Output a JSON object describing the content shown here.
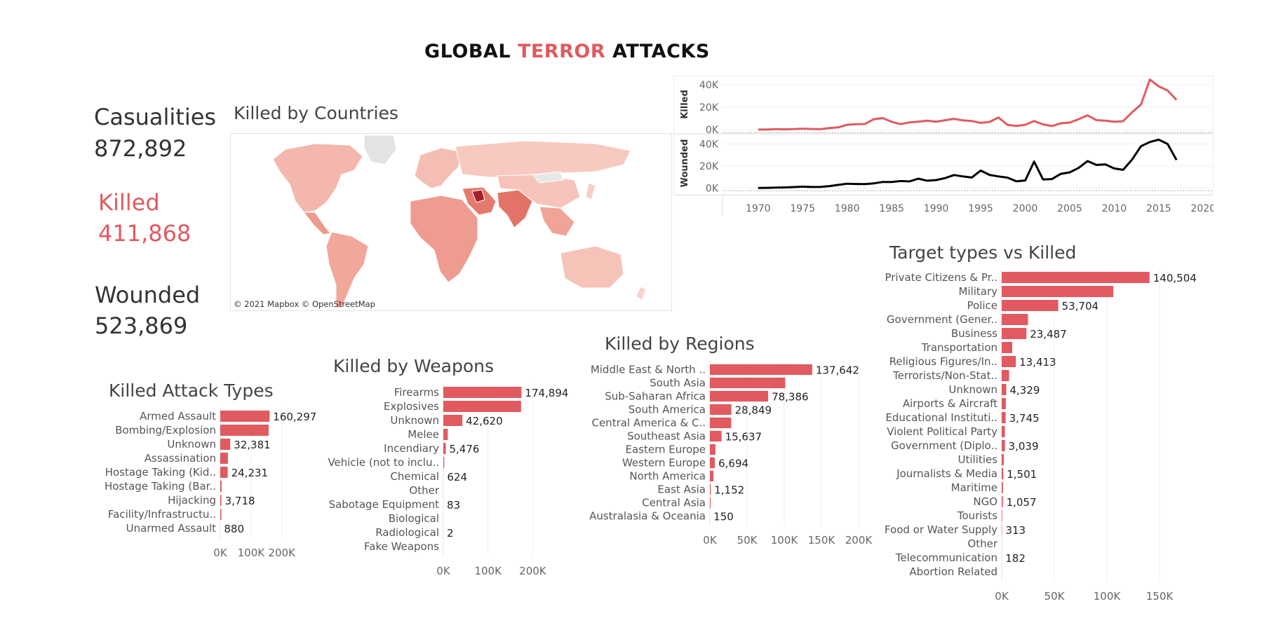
{
  "title": {
    "part1": "GLOBAL ",
    "part2": "TERROR",
    "part3": " ATTACKS"
  },
  "kpis": {
    "casualties": {
      "label": "Casualities",
      "value": "872,892"
    },
    "killed": {
      "label": "Killed",
      "value": "411,868"
    },
    "wounded": {
      "label": "Wounded",
      "value": "523,869"
    }
  },
  "colors": {
    "accent": "#e05a5f",
    "dark": "#333333",
    "black": "#000000"
  },
  "map": {
    "title": "Killed by Countries",
    "credit": "© 2021 Mapbox © OpenStreetMap"
  },
  "chart_data": [
    {
      "id": "timeline",
      "type": "line",
      "x": [
        1970,
        1971,
        1972,
        1973,
        1974,
        1975,
        1976,
        1977,
        1978,
        1979,
        1980,
        1981,
        1982,
        1983,
        1984,
        1985,
        1986,
        1987,
        1988,
        1989,
        1990,
        1991,
        1992,
        1993,
        1994,
        1995,
        1996,
        1997,
        1998,
        1999,
        2000,
        2001,
        2002,
        2003,
        2004,
        2005,
        2006,
        2007,
        2008,
        2009,
        2010,
        2011,
        2012,
        2013,
        2014,
        2015,
        2016,
        2017
      ],
      "xticks": [
        "1970",
        "1975",
        "1980",
        "1985",
        "1990",
        "1995",
        "2000",
        "2005",
        "2010",
        "2015",
        "2020"
      ],
      "xtick_values": [
        1970,
        1975,
        1980,
        1985,
        1990,
        1995,
        2000,
        2005,
        2010,
        2015,
        2020
      ],
      "xlim": [
        1966,
        2021
      ],
      "panels": [
        {
          "ylabel": "Killed",
          "color": "#e05a5f",
          "yticks": [
            "40K",
            "20K",
            "0K"
          ],
          "ytick_values": [
            40000,
            20000,
            0
          ],
          "ylim": [
            -3000,
            48000
          ],
          "values": [
            174,
            173,
            566,
            370,
            539,
            1000,
            700,
            460,
            1500,
            2100,
            4400,
            4900,
            5100,
            9400,
            10400,
            7100,
            4950,
            6500,
            7200,
            8100,
            7150,
            8450,
            9700,
            8300,
            7690,
            6100,
            6950,
            10900,
            4400,
            3400,
            4400,
            7700,
            4800,
            3300,
            5800,
            6300,
            9400,
            12800,
            8500,
            8000,
            7100,
            7600,
            15500,
            22300,
            44500,
            38500,
            34900,
            26450
          ]
        },
        {
          "ylabel": "Wounded",
          "color": "#000000",
          "yticks": [
            "40K",
            "20K",
            "0K"
          ],
          "ytick_values": [
            40000,
            20000,
            0
          ],
          "ylim": [
            -3000,
            48000
          ],
          "values": [
            0,
            100,
            300,
            500,
            800,
            1200,
            900,
            1000,
            1700,
            2800,
            3900,
            3600,
            3500,
            4200,
            5500,
            5400,
            6300,
            6000,
            8500,
            6600,
            7200,
            9000,
            11800,
            10500,
            9500,
            15900,
            11900,
            10500,
            9400,
            6100,
            6800,
            24000,
            7800,
            8100,
            12900,
            14200,
            18200,
            24500,
            21000,
            21500,
            17800,
            16500,
            25800,
            38000,
            41800,
            44000,
            40000,
            25500
          ]
        }
      ]
    },
    {
      "id": "attack_types",
      "type": "bar",
      "title": "Killed Attack Types",
      "categories": [
        "Armed Assault",
        "Bombing/Explosion",
        "Unknown",
        "Assassination",
        "Hostage Taking (Kid..",
        "Hostage Taking (Bar..",
        "Hijacking",
        "Facility/Infrastructu..",
        "Unarmed Assault"
      ],
      "values": [
        160297,
        157321,
        32381,
        24920,
        24231,
        4478,
        3718,
        3642,
        880
      ],
      "labels": [
        "160,297",
        "",
        "32,381",
        "",
        "24,231",
        "",
        "3,718",
        "",
        "880"
      ],
      "xticks": [
        "0K",
        "100K",
        "200K"
      ],
      "xtick_values": [
        0,
        100000,
        200000
      ],
      "xlim": [
        0,
        260000
      ]
    },
    {
      "id": "weapons",
      "type": "bar",
      "title": "Killed by Weapons",
      "categories": [
        "Firearms",
        "Explosives",
        "Unknown",
        "Melee",
        "Incendiary",
        "Vehicle (not to inclu..",
        "Chemical",
        "Other",
        "Sabotage Equipment",
        "Biological",
        "Radiological",
        "Fake Weapons"
      ],
      "values": [
        174894,
        174000,
        42620,
        10000,
        5476,
        2000,
        624,
        130,
        83,
        9,
        2,
        0
      ],
      "labels": [
        "174,894",
        "",
        "42,620",
        "",
        "5,476",
        "",
        "624",
        "",
        "83",
        "",
        "2",
        ""
      ],
      "xticks": [
        "0K",
        "100K",
        "200K"
      ],
      "xtick_values": [
        0,
        100000,
        200000
      ],
      "xlim": [
        0,
        270000
      ]
    },
    {
      "id": "regions",
      "type": "bar",
      "title": "Killed by Regions",
      "categories": [
        "Middle East & North ..",
        "South Asia",
        "Sub-Saharan Africa",
        "South America",
        "Central America & C..",
        "Southeast Asia",
        "Eastern Europe",
        "Western Europe",
        "North America",
        "East Asia",
        "Central Asia",
        "Australasia & Oceania"
      ],
      "values": [
        137642,
        101319,
        78386,
        28849,
        28708,
        15637,
        7415,
        6694,
        4916,
        1152,
        1000,
        150
      ],
      "labels": [
        "137,642",
        "",
        "78,386",
        "28,849",
        "",
        "15,637",
        "",
        "6,694",
        "",
        "1,152",
        "",
        "150"
      ],
      "xticks": [
        "0K",
        "50K",
        "100K",
        "150K",
        "200K"
      ],
      "xtick_values": [
        0,
        50000,
        100000,
        150000,
        200000
      ],
      "xlim": [
        0,
        200000
      ]
    },
    {
      "id": "targets",
      "type": "bar",
      "title": "Target types vs Killed",
      "categories": [
        "Private Citizens & Pr..",
        "Military",
        "Police",
        "Government (Gener..",
        "Business",
        "Transportation",
        "Religious Figures/In..",
        "Terrorists/Non-Stat..",
        "Unknown",
        "Airports & Aircraft",
        "Educational Instituti..",
        "Violent Political Party",
        "Government (Diplo..",
        "Utilities",
        "Journalists & Media",
        "Maritime",
        "NGO",
        "Tourists",
        "Food or Water Supply",
        "Other",
        "Telecommunication",
        "Abortion Related"
      ],
      "values": [
        140504,
        106047,
        53704,
        25000,
        23487,
        10000,
        13413,
        7000,
        4329,
        3900,
        3745,
        3000,
        3039,
        2000,
        1501,
        1200,
        1057,
        500,
        313,
        250,
        182,
        10
      ],
      "labels": [
        "140,504",
        "",
        "53,704",
        "",
        "23,487",
        "",
        "13,413",
        "",
        "4,329",
        "",
        "3,745",
        "",
        "3,039",
        "",
        "1,501",
        "",
        "1,057",
        "",
        "313",
        "",
        "182",
        ""
      ],
      "xticks": [
        "0K",
        "50K",
        "100K",
        "150K"
      ],
      "xtick_values": [
        0,
        50000,
        100000,
        150000
      ],
      "xlim": [
        0,
        190000
      ]
    }
  ]
}
